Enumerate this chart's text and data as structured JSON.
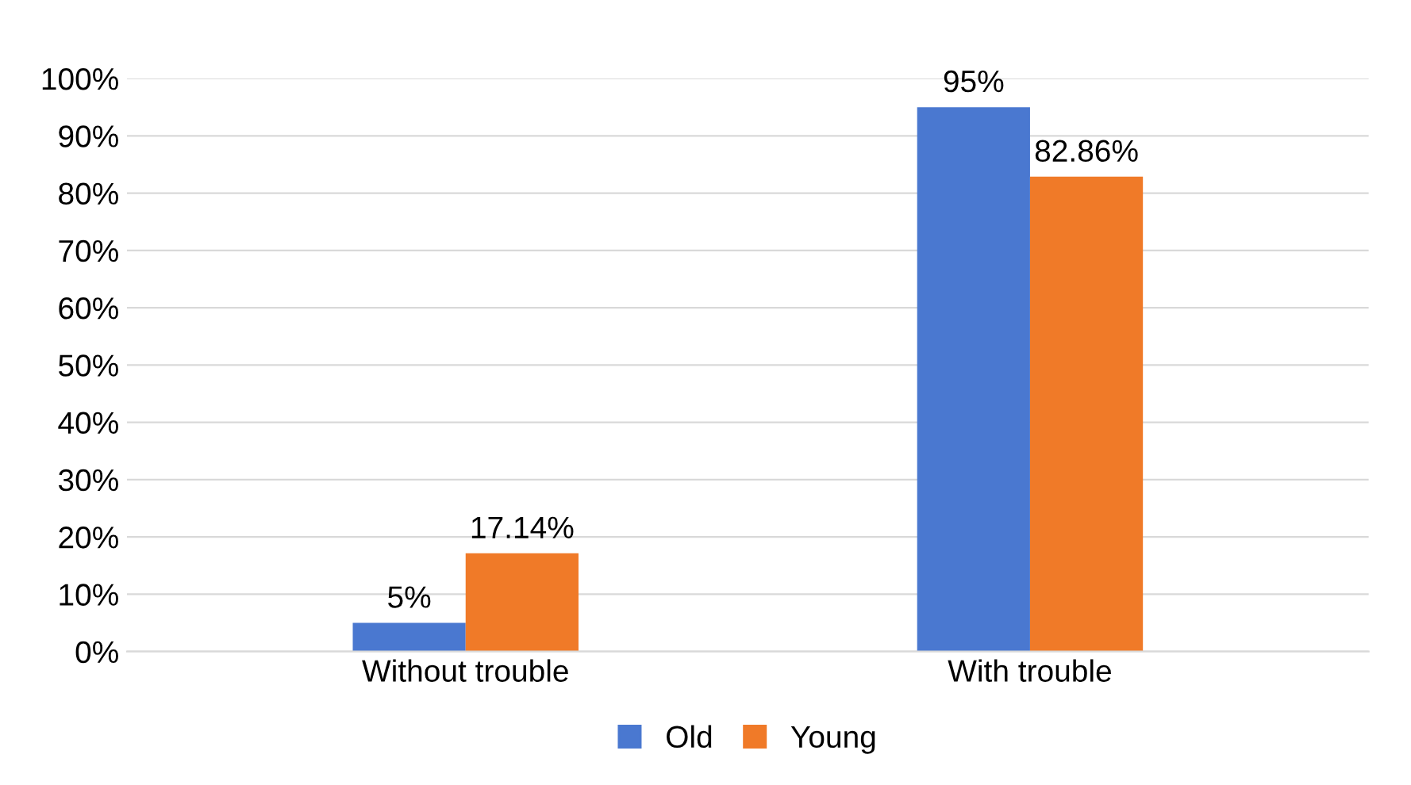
{
  "chart_data": {
    "type": "bar",
    "categories": [
      "Without trouble",
      "With trouble"
    ],
    "series": [
      {
        "name": "Old",
        "color": "#4a78d0",
        "values": [
          5,
          95
        ],
        "value_labels": [
          "5%",
          "95%"
        ]
      },
      {
        "name": "Young",
        "color": "#f07a28",
        "values": [
          17.14,
          82.86
        ],
        "value_labels": [
          "17.14%",
          "82.86%"
        ]
      }
    ],
    "ylim": [
      0,
      100
    ],
    "yticks": [
      {
        "value": 0,
        "label": "0%"
      },
      {
        "value": 10,
        "label": "10%"
      },
      {
        "value": 20,
        "label": "20%"
      },
      {
        "value": 30,
        "label": "30%"
      },
      {
        "value": 40,
        "label": "40%"
      },
      {
        "value": 50,
        "label": "50%"
      },
      {
        "value": 60,
        "label": "60%"
      },
      {
        "value": 70,
        "label": "70%"
      },
      {
        "value": 80,
        "label": "80%"
      },
      {
        "value": 90,
        "label": "90%"
      },
      {
        "value": 100,
        "label": "100%"
      }
    ],
    "grid": "y",
    "legend": "bottom"
  }
}
